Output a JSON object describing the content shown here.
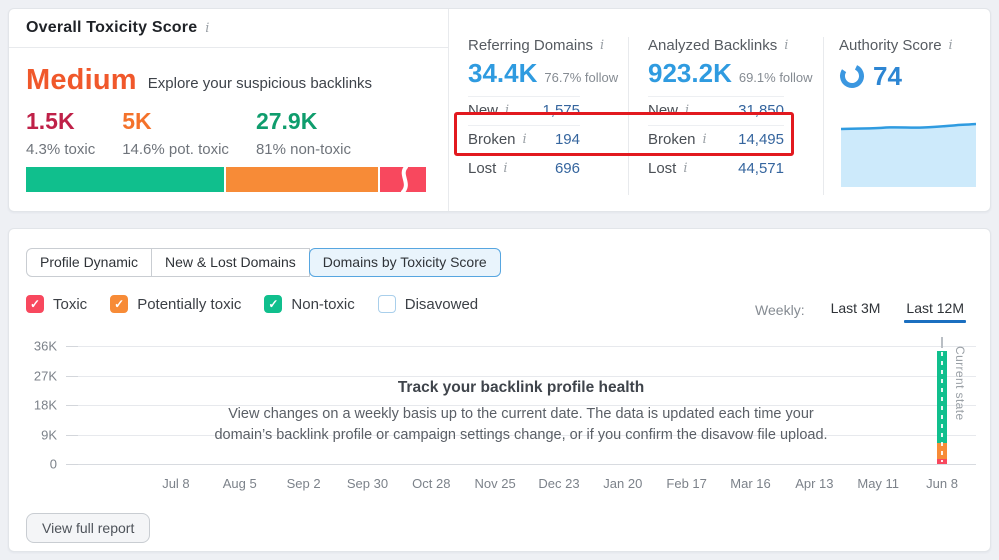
{
  "colors": {
    "toxic_red": "#f8485e",
    "potentially_toxic_orange": "#f78b37",
    "non_toxic_green": "#10bf8d",
    "accent_blue": "#2f9be0",
    "link_blue": "#35659e",
    "highlight_box_red": "#e2191f",
    "selected_underline_blue": "#1b6fc0"
  },
  "toxicity": {
    "title": "Overall Toxicity Score",
    "score": "Medium",
    "score_color": "#f0582b",
    "hint": "Explore your suspicious backlinks",
    "metrics": [
      {
        "value": "1.5K",
        "label": "4.3% toxic",
        "color": "#bf2148"
      },
      {
        "value": "5K",
        "label": "14.6% pot. toxic",
        "color": "#f4722b"
      },
      {
        "value": "27.9K",
        "label": "81% non-toxic",
        "color": "#0f9d6d"
      }
    ],
    "bar_segments": [
      {
        "name": "toxic",
        "color": "#f8485e",
        "display_pct": 11.5
      },
      {
        "name": "potentially-toxic",
        "color": "#f78b37",
        "display_pct": 38.5
      },
      {
        "name": "non-toxic",
        "color": "#10bf8d",
        "display_pct": 50
      }
    ]
  },
  "referring_domains": {
    "title": "Referring Domains",
    "total": "34.4K",
    "follow": "76.7% follow",
    "rows": [
      {
        "label": "New",
        "value": "1,575"
      },
      {
        "label": "Broken",
        "value": "194"
      },
      {
        "label": "Lost",
        "value": "696"
      }
    ]
  },
  "analyzed_backlinks": {
    "title": "Analyzed Backlinks",
    "total": "923.2K",
    "follow": "69.1% follow",
    "rows": [
      {
        "label": "New",
        "value": "31,850"
      },
      {
        "label": "Broken",
        "value": "14,495"
      },
      {
        "label": "Lost",
        "value": "44,571"
      }
    ]
  },
  "authority": {
    "title": "Authority Score",
    "score": "74"
  },
  "tabs": {
    "items": [
      {
        "label": "Profile Dynamic",
        "active": false
      },
      {
        "label": "New & Lost Domains",
        "active": false
      },
      {
        "label": "Domains by Toxicity Score",
        "active": true
      }
    ]
  },
  "legend": {
    "items": [
      {
        "label": "Toxic",
        "checked": true,
        "color": "#f8485e"
      },
      {
        "label": "Potentially toxic",
        "checked": true,
        "color": "#f78b37"
      },
      {
        "label": "Non-toxic",
        "checked": true,
        "color": "#10bf8d"
      },
      {
        "label": "Disavowed",
        "checked": false,
        "color": "#ffffff"
      }
    ]
  },
  "period": {
    "label": "Weekly:",
    "options": [
      {
        "label": "Last 3M",
        "active": false
      },
      {
        "label": "Last 12M",
        "active": true
      }
    ]
  },
  "chart_data": {
    "type": "bar",
    "title": "",
    "xlabel": "",
    "ylabel": "",
    "x_ticks": [
      "Jul 8",
      "Aug 5",
      "Sep 2",
      "Sep 30",
      "Oct 28",
      "Nov 25",
      "Dec 23",
      "Jan 20",
      "Feb 17",
      "Mar 16",
      "Apr 13",
      "May 11",
      "Jun 8"
    ],
    "y_ticks": [
      "36K",
      "27K",
      "18K",
      "9K",
      "0"
    ],
    "ylim": [
      0,
      36000
    ],
    "grid": "horizontal",
    "stacked": true,
    "series": [
      {
        "name": "Toxic",
        "color": "#f8485e",
        "values": [
          null,
          null,
          null,
          null,
          null,
          null,
          null,
          null,
          null,
          null,
          null,
          null,
          1500
        ]
      },
      {
        "name": "Potentially toxic",
        "color": "#f78b37",
        "values": [
          null,
          null,
          null,
          null,
          null,
          null,
          null,
          null,
          null,
          null,
          null,
          null,
          5000
        ]
      },
      {
        "name": "Non-toxic",
        "color": "#10bf8d",
        "values": [
          null,
          null,
          null,
          null,
          null,
          null,
          null,
          null,
          null,
          null,
          null,
          null,
          27900
        ]
      }
    ],
    "annotations": [
      "Current state"
    ]
  },
  "empty_state": {
    "title": "Track your backlink profile health",
    "line1": "View changes on a weekly basis up to the current date. The data is updated each time your",
    "line2": "domain’s backlink profile or campaign settings change, or if you confirm the disavow file upload."
  },
  "chart_annotation": "Current state",
  "footer": {
    "view_report_label": "View full report"
  }
}
